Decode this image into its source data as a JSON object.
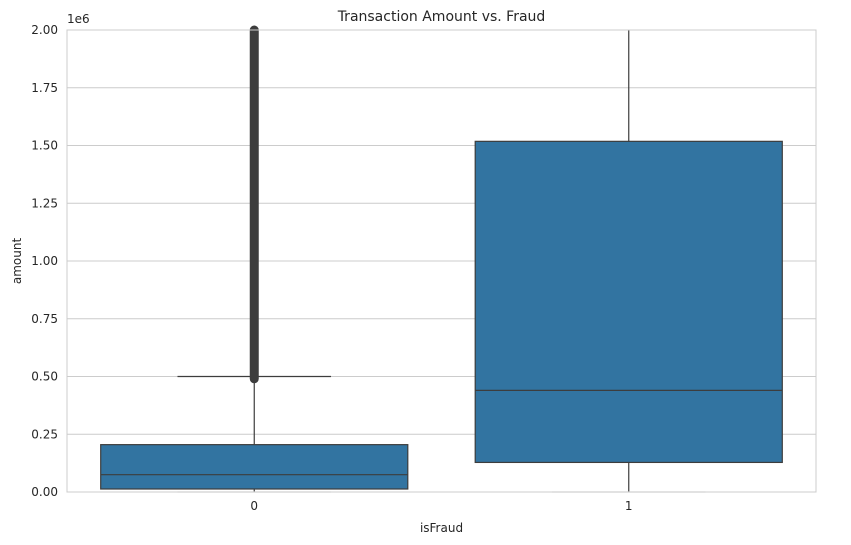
{
  "chart_data": {
    "type": "box",
    "title": "Transaction Amount vs. Fraud",
    "xlabel": "isFraud",
    "ylabel": "amount",
    "y_offset_label": "1e6",
    "categories": [
      "0",
      "1"
    ],
    "ylim": [
      0,
      2000000
    ],
    "yticks": [
      0,
      250000,
      500000,
      750000,
      1000000,
      1250000,
      1500000,
      1750000,
      2000000
    ],
    "ytick_labels": [
      "0.00",
      "0.25",
      "0.50",
      "0.75",
      "1.00",
      "1.25",
      "1.50",
      "1.75",
      "2.00"
    ],
    "grid": true,
    "boxes": [
      {
        "category": "0",
        "whisker_low": 0,
        "q1": 13000,
        "median": 75000,
        "q3": 205000,
        "whisker_high": 500000,
        "outliers_from": 490000,
        "outliers_to": 2000000
      },
      {
        "category": "1",
        "whisker_low": 0,
        "q1": 128000,
        "median": 440000,
        "q3": 1518000,
        "whisker_high": 2000000
      }
    ],
    "colors": {
      "box": "#3274a1",
      "line": "#3d3d3d",
      "grid": "#cccccc",
      "spine": "#cccccc",
      "outlier": "#3d3d3d"
    }
  }
}
